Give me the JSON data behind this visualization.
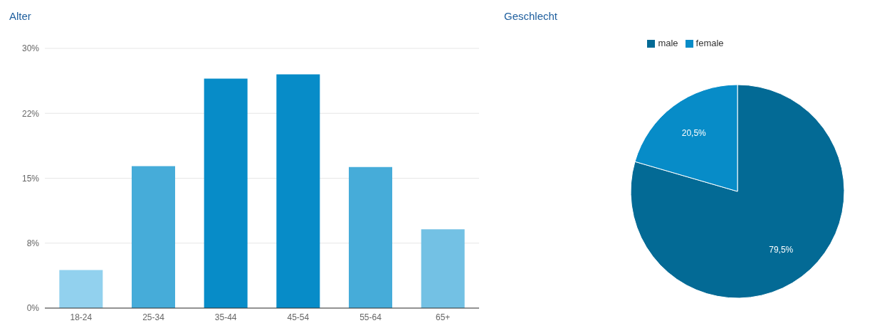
{
  "chart_data": [
    {
      "type": "bar",
      "title": "Alter",
      "categories": [
        "18-24",
        "25-34",
        "35-44",
        "45-54",
        "55-64",
        "65+"
      ],
      "values": [
        4.4,
        16.4,
        26.5,
        27.0,
        16.3,
        9.1
      ],
      "colors": [
        "#92d1ee",
        "#46acd9",
        "#078cc8",
        "#078cc8",
        "#46acd9",
        "#73c1e4"
      ],
      "ylim": [
        0,
        30
      ],
      "yticks": [
        {
          "value": 0,
          "label": "0%"
        },
        {
          "value": 7.5,
          "label": "8%"
        },
        {
          "value": 15,
          "label": "15%"
        },
        {
          "value": 22.5,
          "label": "22%"
        },
        {
          "value": 30,
          "label": "30%"
        }
      ],
      "grid": "y"
    },
    {
      "type": "pie",
      "title": "Geschlecht",
      "categories": [
        "male",
        "female"
      ],
      "values": [
        79.5,
        20.5
      ],
      "colors": [
        "#036a95",
        "#078cc8"
      ],
      "value_labels": [
        "79,5%",
        "20,5%"
      ],
      "legend": "top"
    }
  ]
}
